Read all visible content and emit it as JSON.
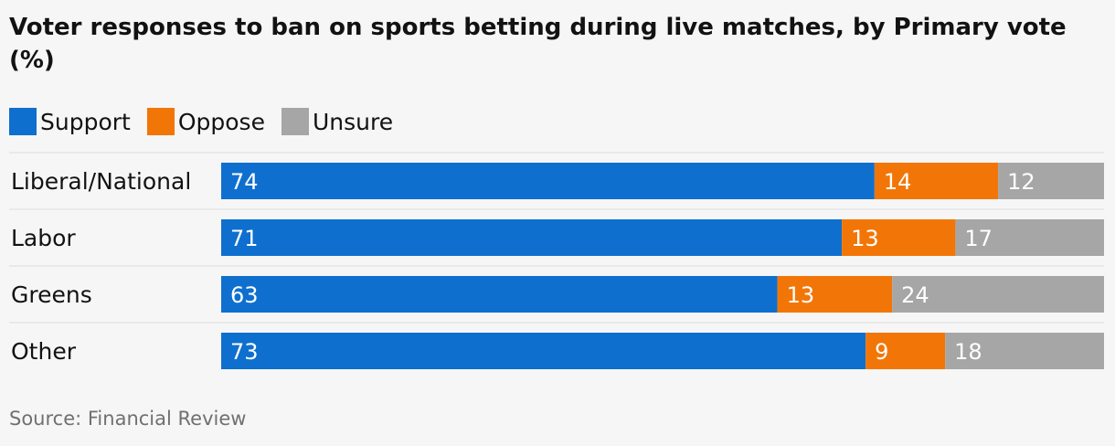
{
  "chart_data": {
    "type": "bar",
    "orientation": "horizontal",
    "stacked": true,
    "title": "Voter responses to ban on sports betting during live matches, by Primary vote (%)",
    "categories": [
      "Liberal/National",
      "Labor",
      "Greens",
      "Other"
    ],
    "series": [
      {
        "name": "Support",
        "color": "#0f6fce",
        "values": [
          74,
          71,
          63,
          73
        ]
      },
      {
        "name": "Oppose",
        "color": "#f27607",
        "values": [
          14,
          13,
          13,
          9
        ]
      },
      {
        "name": "Unsure",
        "color": "#a6a6a6",
        "values": [
          12,
          17,
          24,
          18
        ]
      }
    ],
    "legend_position": "top-left",
    "grid": false
  },
  "source": "Source: Financial Review"
}
